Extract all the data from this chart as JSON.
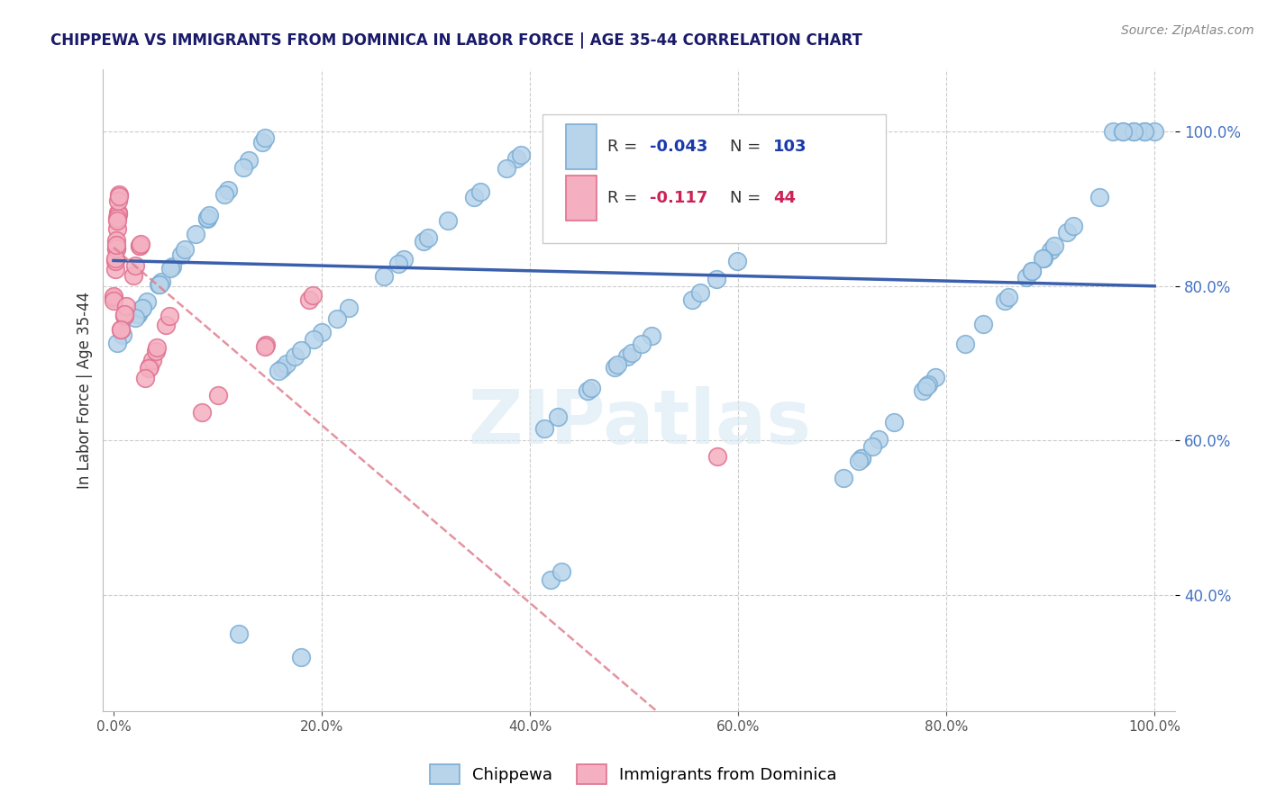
{
  "title": "CHIPPEWA VS IMMIGRANTS FROM DOMINICA IN LABOR FORCE | AGE 35-44 CORRELATION CHART",
  "source": "Source: ZipAtlas.com",
  "ylabel": "In Labor Force | Age 35-44",
  "legend_labels": [
    "Chippewa",
    "Immigrants from Dominica"
  ],
  "r_chippewa": -0.043,
  "n_chippewa": 103,
  "r_dominica": -0.117,
  "n_dominica": 44,
  "blue_color": "#b8d4ea",
  "blue_edge": "#7aadd4",
  "pink_color": "#f4b0c0",
  "pink_edge": "#e07090",
  "trendline_blue": "#3a5fad",
  "trendline_pink": "#e08090",
  "watermark_color": "#d8e8f4",
  "ylim_min": 0.25,
  "ylim_max": 1.08,
  "yticks": [
    0.4,
    0.6,
    0.8,
    1.0
  ],
  "xticks": [
    0.0,
    0.2,
    0.4,
    0.6,
    0.8,
    1.0
  ],
  "grid_color": "#cccccc",
  "title_color": "#1a1a6b",
  "source_color": "#888888",
  "ylabel_color": "#333333",
  "right_tick_color": "#4472c4"
}
